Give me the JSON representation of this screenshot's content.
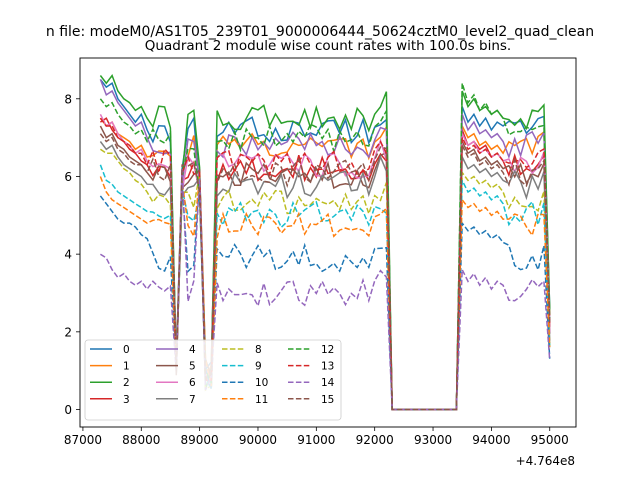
{
  "chart_data": {
    "type": "line",
    "suptitle": "n file: modeM0/AS1T05_239T01_9000006444_50624cztM0_level2_quad_clean",
    "title": "Quadrant 2 module wise count rates with 100.0s bins.",
    "xlabel": "",
    "ylabel": "",
    "x_offset_label": "+4.764e8",
    "xlim": [
      86950,
      95450
    ],
    "ylim": [
      -0.45,
      9.05
    ],
    "x_ticks": [
      87000,
      88000,
      89000,
      90000,
      91000,
      92000,
      93000,
      94000,
      95000
    ],
    "x_tick_labels": [
      "87000",
      "88000",
      "89000",
      "90000",
      "91000",
      "92000",
      "93000",
      "94000",
      "95000"
    ],
    "y_ticks": [
      0,
      2,
      4,
      6,
      8
    ],
    "y_tick_labels": [
      "0",
      "2",
      "4",
      "6",
      "8"
    ],
    "grid": false,
    "legend_placement": "lower left",
    "legend_columns": 4,
    "x_start": 87300,
    "x_step": 100,
    "gap_x_values": [
      92300,
      92400,
      92500,
      92600,
      92700,
      92800,
      92900,
      93000,
      93100,
      93200,
      93300,
      93400
    ],
    "dip_x_values": [
      88600,
      88700,
      89000,
      89100,
      89200
    ],
    "series": [
      {
        "name": "0",
        "color": "#1f77b4",
        "linestyle": "solid",
        "level": 7.2,
        "first_values": [
          8.5,
          8.3,
          8.4,
          8.0,
          7.8,
          7.6,
          7.4,
          7.6,
          7.2
        ],
        "resumed_values": [
          7.8,
          7.4,
          7.6,
          7.3,
          7.5,
          7.2,
          7.4,
          7.3
        ]
      },
      {
        "name": "1",
        "color": "#ff7f0e",
        "linestyle": "solid",
        "level": 6.8,
        "first_values": [
          7.5,
          7.3,
          7.4,
          7.1,
          7.0,
          6.9,
          6.7,
          6.8,
          6.5
        ],
        "resumed_values": [
          7.3,
          7.0,
          7.1,
          6.8,
          6.9,
          6.7,
          6.8,
          6.6
        ]
      },
      {
        "name": "2",
        "color": "#2ca02c",
        "linestyle": "solid",
        "level": 7.5,
        "first_values": [
          8.6,
          8.4,
          8.6,
          8.2,
          8.0,
          7.9,
          7.7,
          7.8,
          7.5
        ],
        "resumed_values": [
          8.2,
          7.8,
          8.0,
          7.7,
          7.8,
          7.6,
          7.7,
          7.5
        ]
      },
      {
        "name": "3",
        "color": "#d62728",
        "linestyle": "solid",
        "level": 6.2,
        "first_values": [
          7.4,
          7.5,
          7.2,
          7.0,
          6.9,
          6.7,
          6.6,
          6.4,
          6.3
        ],
        "resumed_values": [
          7.2,
          6.8,
          6.9,
          6.7,
          6.8,
          6.5,
          6.6,
          6.4
        ]
      },
      {
        "name": "4",
        "color": "#9467bd",
        "linestyle": "solid",
        "level": 6.8,
        "first_values": [
          8.5,
          8.1,
          8.2,
          7.9,
          7.7,
          7.5,
          7.3,
          7.4,
          7.0
        ],
        "resumed_values": [
          7.6,
          7.2,
          7.4,
          7.1,
          7.2,
          7.0,
          7.1,
          6.9
        ]
      },
      {
        "name": "5",
        "color": "#8c564b",
        "linestyle": "solid",
        "level": 6.0,
        "first_values": [
          7.3,
          7.0,
          7.1,
          6.8,
          6.7,
          6.5,
          6.4,
          6.3,
          6.1
        ],
        "resumed_values": [
          6.9,
          6.6,
          6.7,
          6.4,
          6.5,
          6.3,
          6.4,
          6.2
        ]
      },
      {
        "name": "6",
        "color": "#e377c2",
        "linestyle": "solid",
        "level": 6.3,
        "first_values": [
          7.6,
          7.3,
          7.4,
          7.1,
          6.9,
          6.8,
          6.6,
          6.7,
          6.4
        ],
        "resumed_values": [
          7.1,
          6.8,
          6.9,
          6.6,
          6.7,
          6.5,
          6.6,
          6.4
        ]
      },
      {
        "name": "7",
        "color": "#7f7f7f",
        "linestyle": "solid",
        "level": 5.8,
        "first_values": [
          6.9,
          6.7,
          6.8,
          6.5,
          6.3,
          6.2,
          6.1,
          6.0,
          5.8
        ],
        "resumed_values": [
          6.5,
          6.2,
          6.3,
          6.1,
          6.2,
          6.0,
          6.1,
          5.9
        ]
      },
      {
        "name": "8",
        "color": "#bcbd22",
        "linestyle": "dashed",
        "level": 5.3,
        "first_values": [
          6.7,
          6.6,
          6.6,
          6.4,
          6.2,
          6.1,
          5.9,
          5.8,
          5.6
        ],
        "resumed_values": [
          6.1,
          5.9,
          6.0,
          5.8,
          5.9,
          5.7,
          5.8,
          5.6
        ]
      },
      {
        "name": "9",
        "color": "#17becf",
        "linestyle": "dashed",
        "level": 5.0,
        "first_values": [
          6.3,
          5.9,
          5.8,
          5.6,
          5.5,
          5.4,
          5.3,
          5.2,
          5.1
        ],
        "resumed_values": [
          5.9,
          5.6,
          5.7,
          5.5,
          5.6,
          5.4,
          5.5,
          5.3
        ]
      },
      {
        "name": "10",
        "color": "#1f77b4",
        "linestyle": "dashed",
        "level": 3.9,
        "first_values": [
          5.5,
          5.3,
          5.1,
          4.9,
          4.8,
          4.8,
          4.7,
          4.5,
          4.4
        ],
        "resumed_values": [
          4.8,
          4.6,
          4.7,
          4.5,
          4.6,
          4.4,
          4.5,
          4.3
        ]
      },
      {
        "name": "11",
        "color": "#ff7f0e",
        "linestyle": "dashed",
        "level": 4.7,
        "first_values": [
          6.0,
          5.6,
          5.4,
          5.3,
          5.2,
          5.1,
          5.0,
          4.9,
          4.8
        ],
        "resumed_values": [
          5.4,
          5.2,
          5.3,
          5.1,
          5.2,
          5.0,
          5.1,
          4.9
        ]
      },
      {
        "name": "12",
        "color": "#2ca02c",
        "linestyle": "dashed",
        "level": 7.0,
        "first_values": [
          8.0,
          7.8,
          7.9,
          7.6,
          7.4,
          7.3,
          7.1,
          7.2,
          6.9
        ],
        "resumed_values": [
          8.4,
          7.9,
          8.1,
          7.7,
          7.9,
          7.6,
          7.7,
          7.5
        ]
      },
      {
        "name": "13",
        "color": "#d62728",
        "linestyle": "dashed",
        "level": 6.4,
        "first_values": [
          7.5,
          7.3,
          7.3,
          7.0,
          6.9,
          6.8,
          6.6,
          6.6,
          6.3
        ],
        "resumed_values": [
          7.0,
          6.7,
          6.8,
          6.6,
          6.7,
          6.5,
          6.6,
          6.4
        ]
      },
      {
        "name": "14",
        "color": "#9467bd",
        "linestyle": "dashed",
        "level": 3.0,
        "first_values": [
          4.0,
          3.9,
          3.6,
          3.4,
          3.5,
          3.3,
          3.2,
          3.3,
          3.1
        ],
        "resumed_values": [
          3.6,
          3.3,
          3.5,
          3.2,
          3.4,
          3.1,
          3.3,
          3.2
        ]
      },
      {
        "name": "15",
        "color": "#8c564b",
        "linestyle": "dashed",
        "level": 6.1,
        "first_values": [
          7.1,
          6.9,
          7.0,
          6.7,
          6.6,
          6.4,
          6.3,
          6.3,
          6.1
        ],
        "resumed_values": [
          6.8,
          6.5,
          6.6,
          6.3,
          6.4,
          6.2,
          6.3,
          6.1
        ]
      }
    ]
  }
}
